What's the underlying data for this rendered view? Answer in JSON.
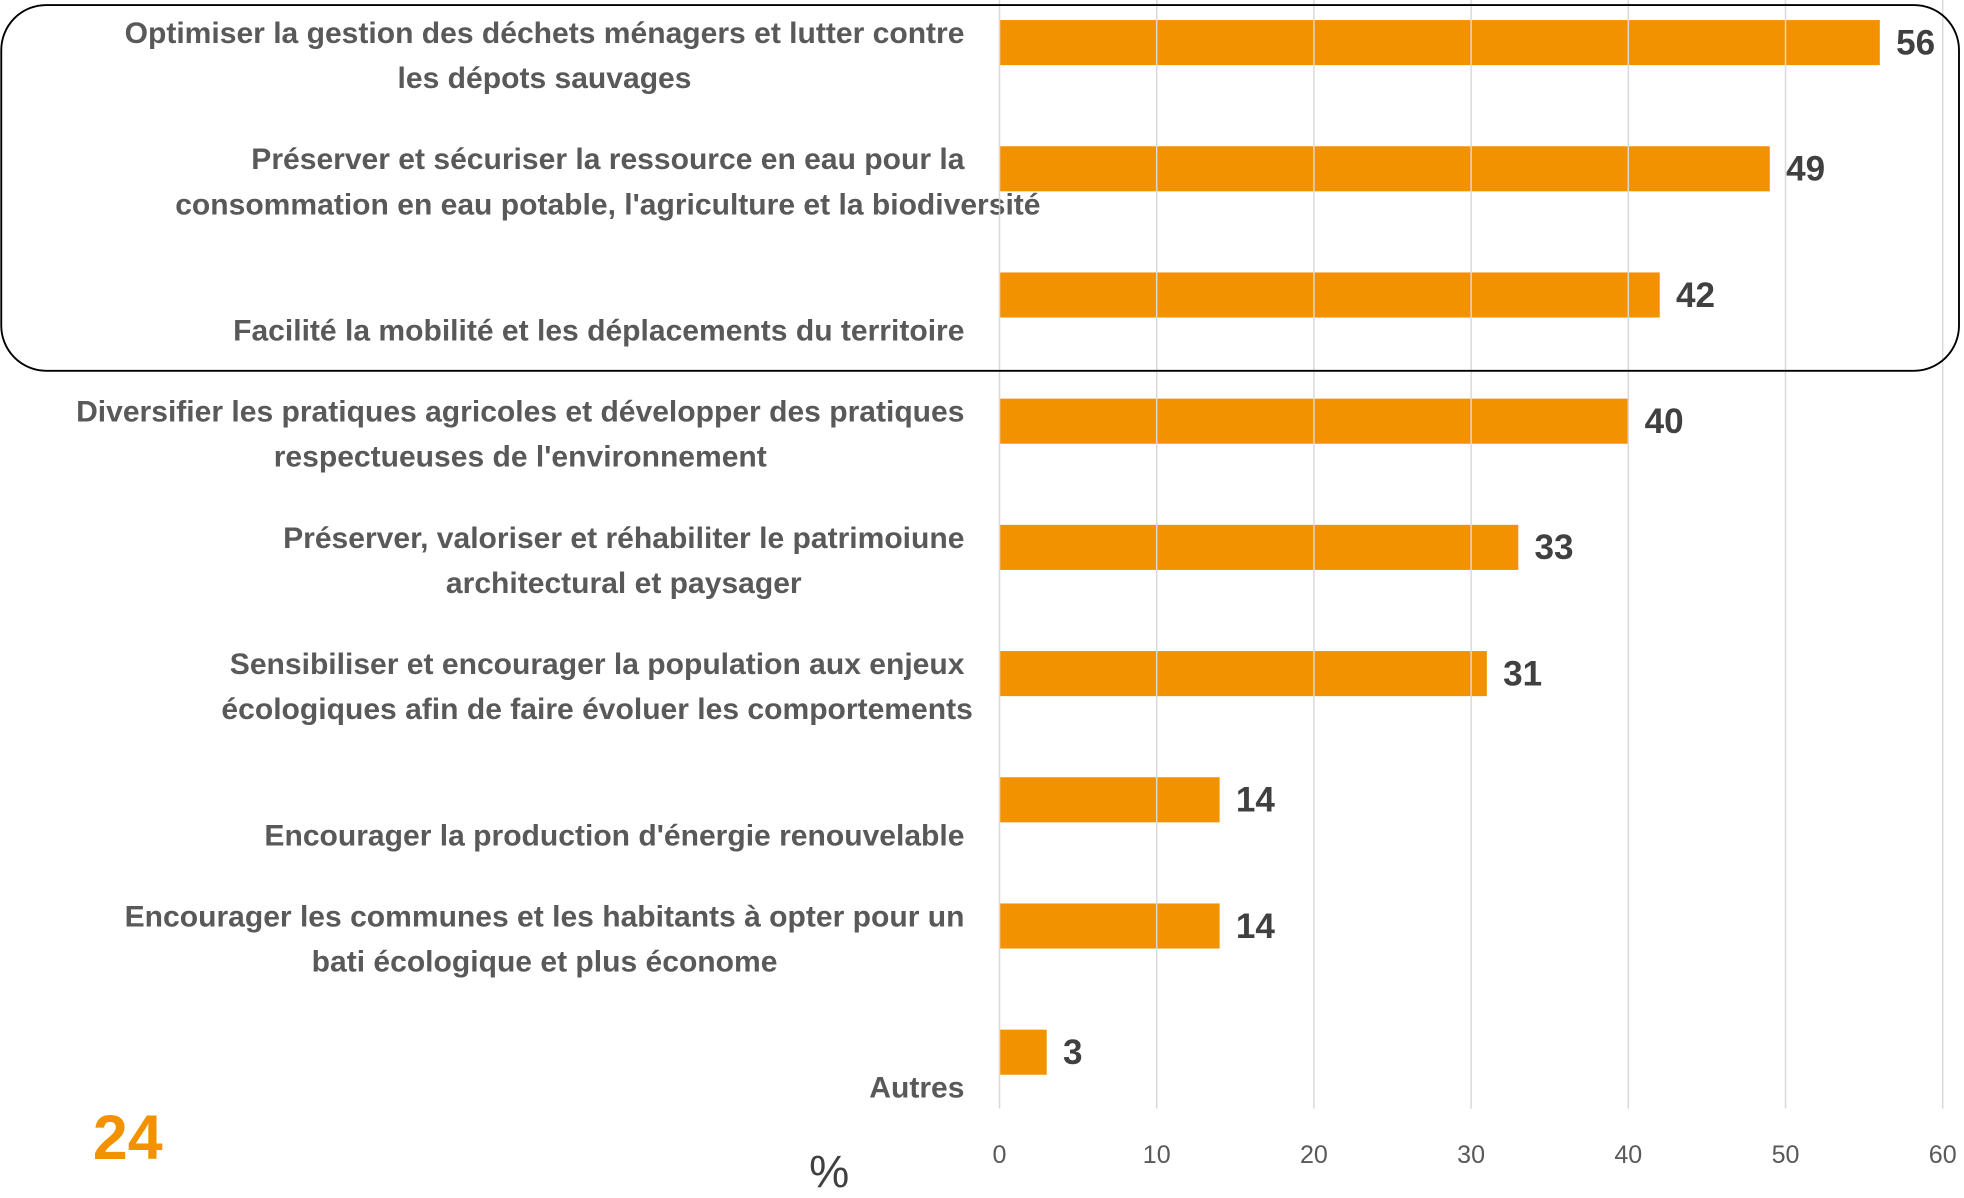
{
  "page_number": "24",
  "chart_data": {
    "type": "bar",
    "orientation": "horizontal",
    "categories": [
      [
        "Optimiser la gestion des déchets ménagers et lutter contre",
        "les dépots sauvages"
      ],
      [
        "Préserver et sécuriser la ressource en eau pour la",
        "consommation en eau potable, l'agriculture et la biodiversité"
      ],
      [
        "Facilité la mobilité et les déplacements du territoire"
      ],
      [
        "Diversifier les pratiques agricoles et développer des pratiques",
        "respectueuses de l'environnement"
      ],
      [
        "Préserver, valoriser et réhabiliter le patrimoiune",
        "architectural et paysager"
      ],
      [
        "Sensibiliser et encourager la population aux enjeux",
        "écologiques afin de faire évoluer les comportements"
      ],
      [
        "Encourager la production d'énergie renouvelable"
      ],
      [
        "Encourager les communes et les habitants à opter pour un",
        "bati écologique et plus économe"
      ],
      [
        "Autres"
      ]
    ],
    "values": [
      56,
      49,
      42,
      40,
      33,
      31,
      14,
      14,
      3
    ],
    "color": "#f39200",
    "xlabel": "%",
    "xlim": [
      0,
      60
    ],
    "xticks": [
      0,
      10,
      20,
      30,
      40,
      50,
      60
    ],
    "grid": true
  }
}
